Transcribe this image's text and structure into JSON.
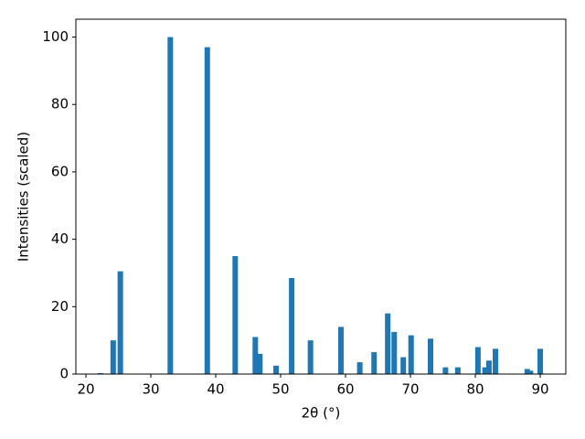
{
  "chart_data": {
    "type": "bar",
    "x_label": "2θ (°)",
    "y_label": "Intensities (scaled)",
    "x": [
      22.25,
      24.2,
      25.3,
      33.0,
      38.7,
      43.0,
      46.1,
      46.8,
      49.3,
      51.7,
      54.6,
      59.3,
      62.2,
      64.4,
      66.5,
      67.5,
      68.9,
      70.1,
      73.1,
      75.4,
      77.3,
      80.4,
      81.5,
      82.1,
      83.1,
      88.0,
      88.5,
      90.0
    ],
    "values": [
      0.3,
      10,
      30.5,
      100,
      97,
      35,
      11,
      6,
      2.5,
      28.5,
      10,
      14,
      3.5,
      6.5,
      18,
      12.5,
      5,
      11.5,
      10.5,
      2,
      2,
      8,
      2,
      4,
      7.5,
      1.5,
      1,
      7.5
    ],
    "color": "#1f77b4",
    "xlim": [
      18.45,
      93.94
    ],
    "ylim": [
      0,
      105.3
    ],
    "xticks": [
      20,
      30,
      40,
      50,
      60,
      70,
      80,
      90
    ],
    "yticks": [
      0,
      20,
      40,
      60,
      80,
      100
    ],
    "grid": false
  }
}
